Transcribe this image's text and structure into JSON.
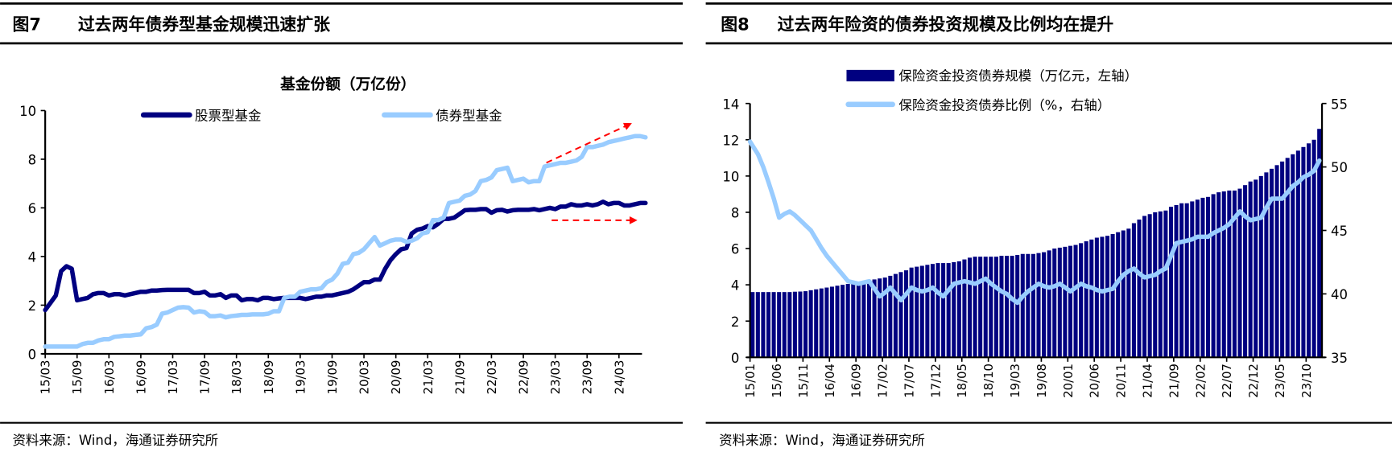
{
  "figures": [
    {
      "number": "图7",
      "title": "过去两年债券型基金规模迅速扩张",
      "source": "资料来源：Wind，海通证券研究所"
    },
    {
      "number": "图8",
      "title": "过去两年险资的债券投资规模及比例均在提升",
      "source": "资料来源：Wind，海通证券研究所"
    }
  ],
  "chart_data": [
    {
      "type": "line",
      "title": "基金份额（万亿份）",
      "ylim": [
        0,
        10
      ],
      "yticks": [
        "0",
        "2",
        "4",
        "6",
        "8",
        "10"
      ],
      "xticks": [
        "15/03",
        "15/09",
        "16/03",
        "16/09",
        "17/03",
        "17/09",
        "18/03",
        "18/09",
        "19/03",
        "19/09",
        "20/03",
        "20/09",
        "21/03",
        "21/09",
        "22/03",
        "22/09",
        "23/03",
        "23/09",
        "24/03"
      ],
      "legend_position": "top",
      "grid": false,
      "x": [
        "15/03",
        "15/04",
        "15/05",
        "15/06",
        "15/07",
        "15/08",
        "15/09",
        "15/10",
        "15/11",
        "15/12",
        "16/01",
        "16/02",
        "16/03",
        "16/04",
        "16/05",
        "16/06",
        "16/07",
        "16/08",
        "16/09",
        "16/10",
        "16/11",
        "16/12",
        "17/01",
        "17/02",
        "17/03",
        "17/04",
        "17/05",
        "17/06",
        "17/07",
        "17/08",
        "17/09",
        "17/10",
        "17/11",
        "17/12",
        "18/01",
        "18/02",
        "18/03",
        "18/04",
        "18/05",
        "18/06",
        "18/07",
        "18/08",
        "18/09",
        "18/10",
        "18/11",
        "18/12",
        "19/01",
        "19/02",
        "19/03",
        "19/04",
        "19/05",
        "19/06",
        "19/07",
        "19/08",
        "19/09",
        "19/10",
        "19/11",
        "19/12",
        "20/01",
        "20/02",
        "20/03",
        "20/04",
        "20/05",
        "20/06",
        "20/07",
        "20/08",
        "20/09",
        "20/10",
        "20/11",
        "20/12",
        "21/01",
        "21/02",
        "21/03",
        "21/04",
        "21/05",
        "21/06",
        "21/07",
        "21/08",
        "21/09",
        "21/10",
        "21/11",
        "21/12",
        "22/01",
        "22/02",
        "22/03",
        "22/04",
        "22/05",
        "22/06",
        "22/07",
        "22/08",
        "22/09",
        "22/10",
        "22/11",
        "22/12",
        "23/01",
        "23/02",
        "23/03",
        "23/04",
        "23/05",
        "23/06",
        "23/07",
        "23/08",
        "23/09",
        "23/10",
        "23/11",
        "23/12",
        "24/01",
        "24/02",
        "24/03",
        "24/04",
        "24/05",
        "24/06",
        "24/07",
        "24/08"
      ],
      "series": [
        {
          "name": "股票型基金",
          "color": "#000080",
          "values": [
            1.8,
            2.1,
            2.4,
            3.4,
            3.6,
            3.5,
            2.2,
            2.25,
            2.3,
            2.45,
            2.5,
            2.5,
            2.4,
            2.45,
            2.45,
            2.4,
            2.45,
            2.5,
            2.55,
            2.55,
            2.6,
            2.6,
            2.62,
            2.63,
            2.63,
            2.63,
            2.63,
            2.63,
            2.5,
            2.5,
            2.55,
            2.4,
            2.4,
            2.45,
            2.3,
            2.4,
            2.4,
            2.2,
            2.25,
            2.25,
            2.2,
            2.3,
            2.3,
            2.25,
            2.28,
            2.3,
            2.3,
            2.3,
            2.3,
            2.25,
            2.3,
            2.35,
            2.35,
            2.4,
            2.4,
            2.45,
            2.5,
            2.55,
            2.65,
            2.8,
            2.95,
            2.95,
            3.05,
            3.05,
            3.5,
            3.85,
            4.1,
            4.3,
            4.35,
            4.95,
            5.1,
            5.15,
            5.25,
            5.2,
            5.35,
            5.55,
            5.55,
            5.6,
            5.75,
            5.9,
            5.92,
            5.92,
            5.95,
            5.95,
            5.8,
            5.9,
            5.92,
            5.85,
            5.9,
            5.92,
            5.92,
            5.92,
            5.95,
            5.9,
            5.95,
            6.0,
            5.95,
            6.05,
            6.05,
            6.15,
            6.1,
            6.1,
            6.15,
            6.1,
            6.15,
            6.25,
            6.15,
            6.2,
            6.2,
            6.1,
            6.1,
            6.15,
            6.2,
            6.2
          ]
        },
        {
          "name": "债券型基金",
          "color": "#99ccff",
          "values": [
            0.3,
            0.3,
            0.3,
            0.3,
            0.3,
            0.3,
            0.3,
            0.4,
            0.45,
            0.45,
            0.55,
            0.6,
            0.6,
            0.7,
            0.72,
            0.75,
            0.75,
            0.78,
            0.8,
            1.05,
            1.1,
            1.2,
            1.65,
            1.7,
            1.8,
            1.9,
            1.92,
            1.9,
            1.7,
            1.75,
            1.72,
            1.55,
            1.55,
            1.58,
            1.5,
            1.55,
            1.57,
            1.6,
            1.6,
            1.62,
            1.62,
            1.62,
            1.65,
            1.75,
            1.75,
            2.3,
            2.35,
            2.35,
            2.55,
            2.6,
            2.65,
            2.65,
            2.7,
            2.95,
            3.05,
            3.3,
            3.7,
            3.75,
            4.1,
            4.15,
            4.3,
            4.55,
            4.8,
            4.45,
            4.55,
            4.65,
            4.7,
            4.7,
            4.6,
            4.65,
            4.75,
            4.95,
            5.0,
            5.5,
            5.5,
            5.6,
            6.2,
            6.25,
            6.3,
            6.5,
            6.55,
            6.7,
            7.1,
            7.15,
            7.25,
            7.55,
            7.6,
            7.65,
            7.1,
            7.15,
            7.2,
            7.05,
            7.1,
            7.1,
            7.7,
            7.75,
            7.8,
            7.85,
            7.85,
            7.9,
            7.95,
            8.1,
            8.5,
            8.5,
            8.55,
            8.6,
            8.7,
            8.75,
            8.8,
            8.85,
            8.9,
            8.95,
            8.95,
            8.9
          ]
        }
      ]
    },
    {
      "type": "bar+line",
      "ylim_left": [
        0,
        14
      ],
      "ylim_right": [
        35,
        55
      ],
      "yticks_left": [
        "0",
        "2",
        "4",
        "6",
        "8",
        "10",
        "12",
        "14"
      ],
      "yticks_right": [
        "35",
        "40",
        "45",
        "50",
        "55"
      ],
      "xticks": [
        "15/01",
        "15/06",
        "15/11",
        "16/04",
        "16/09",
        "17/02",
        "17/07",
        "17/12",
        "18/05",
        "18/10",
        "19/03",
        "19/08",
        "20/01",
        "20/06",
        "20/11",
        "21/04",
        "21/09",
        "22/02",
        "22/07",
        "22/12",
        "23/05",
        "23/10"
      ],
      "legend_position": "top",
      "grid": false,
      "x": [
        "15/01",
        "15/02",
        "15/03",
        "15/04",
        "15/05",
        "15/06",
        "15/07",
        "15/08",
        "15/09",
        "15/10",
        "15/11",
        "15/12",
        "16/01",
        "16/02",
        "16/03",
        "16/04",
        "16/05",
        "16/06",
        "16/07",
        "16/08",
        "16/09",
        "16/10",
        "16/11",
        "16/12",
        "17/01",
        "17/02",
        "17/03",
        "17/04",
        "17/05",
        "17/06",
        "17/07",
        "17/08",
        "17/09",
        "17/10",
        "17/11",
        "17/12",
        "18/01",
        "18/02",
        "18/03",
        "18/04",
        "18/05",
        "18/06",
        "18/07",
        "18/08",
        "18/09",
        "18/10",
        "18/11",
        "18/12",
        "19/01",
        "19/02",
        "19/03",
        "19/04",
        "19/05",
        "19/06",
        "19/07",
        "19/08",
        "19/09",
        "19/10",
        "19/11",
        "19/12",
        "20/01",
        "20/02",
        "20/03",
        "20/04",
        "20/05",
        "20/06",
        "20/07",
        "20/08",
        "20/09",
        "20/10",
        "20/11",
        "20/12",
        "21/01",
        "21/02",
        "21/03",
        "21/04",
        "21/05",
        "21/06",
        "21/07",
        "21/08",
        "21/09",
        "21/10",
        "21/11",
        "21/12",
        "22/01",
        "22/02",
        "22/03",
        "22/04",
        "22/05",
        "22/06",
        "22/07",
        "22/08",
        "22/09",
        "22/10",
        "22/11",
        "22/12",
        "23/01",
        "23/02",
        "23/03",
        "23/04",
        "23/05",
        "23/06",
        "23/07",
        "23/08",
        "23/09",
        "23/10",
        "23/11",
        "23/12"
      ],
      "series": [
        {
          "name": "保险资金投资债券规模（万亿元，左轴）",
          "type": "bar",
          "axis": "left",
          "color": "#000080",
          "values": [
            3.6,
            3.6,
            3.6,
            3.6,
            3.6,
            3.6,
            3.6,
            3.6,
            3.62,
            3.63,
            3.65,
            3.7,
            3.75,
            3.8,
            3.85,
            3.9,
            3.95,
            4.0,
            4.05,
            4.1,
            4.15,
            4.2,
            4.25,
            4.3,
            4.35,
            4.4,
            4.5,
            4.6,
            4.7,
            4.8,
            4.95,
            5.0,
            5.05,
            5.1,
            5.15,
            5.2,
            5.2,
            5.2,
            5.25,
            5.3,
            5.4,
            5.5,
            5.55,
            5.55,
            5.55,
            5.55,
            5.55,
            5.6,
            5.6,
            5.6,
            5.65,
            5.7,
            5.7,
            5.7,
            5.75,
            5.8,
            5.9,
            6.0,
            6.05,
            6.1,
            6.15,
            6.2,
            6.3,
            6.4,
            6.5,
            6.6,
            6.65,
            6.7,
            6.8,
            6.9,
            7.0,
            7.1,
            7.4,
            7.6,
            7.8,
            7.9,
            8.0,
            8.05,
            8.1,
            8.3,
            8.4,
            8.5,
            8.5,
            8.6,
            8.7,
            8.8,
            8.85,
            9.0,
            9.1,
            9.15,
            9.2,
            9.2,
            9.3,
            9.5,
            9.7,
            9.8,
            10.0,
            10.2,
            10.4,
            10.6,
            10.8,
            11.0,
            11.2,
            11.4,
            11.6,
            11.8,
            12.0,
            12.6
          ]
        },
        {
          "name": "保险资金投资债券比例（%，右轴）",
          "type": "line",
          "axis": "right",
          "color": "#99ccff",
          "values": [
            52,
            51,
            50,
            48.8,
            47.5,
            46,
            46.3,
            46.5,
            46.2,
            45.8,
            45.4,
            45,
            44.3,
            43.6,
            43,
            42.5,
            42,
            41.5,
            41,
            40.9,
            40.8,
            40.9,
            41,
            40.4,
            39.8,
            40.1,
            40.5,
            40,
            39.5,
            40,
            40.5,
            40.3,
            40.2,
            40.3,
            40.5,
            40.1,
            39.8,
            40.3,
            40.8,
            40.9,
            41,
            40.9,
            40.8,
            41,
            41.2,
            40.8,
            40.5,
            40.2,
            40,
            39.6,
            39.3,
            39.8,
            40.2,
            40.5,
            40.8,
            40.6,
            40.5,
            40.6,
            40.8,
            40.5,
            40.2,
            40.5,
            40.8,
            40.6,
            40.5,
            40.3,
            40.2,
            40.3,
            40.4,
            41,
            41.5,
            41.8,
            42,
            41.6,
            41.3,
            41.4,
            41.5,
            41.8,
            42,
            43,
            44,
            44.1,
            44.2,
            44.3,
            44.5,
            44.5,
            44.5,
            44.8,
            45,
            45.2,
            45.5,
            46,
            46.5,
            46.1,
            45.8,
            45.9,
            46,
            46.8,
            47.5,
            47.5,
            47.5,
            48,
            48.5,
            48.8,
            49.2,
            49.4,
            49.7,
            50.5
          ]
        }
      ]
    }
  ]
}
